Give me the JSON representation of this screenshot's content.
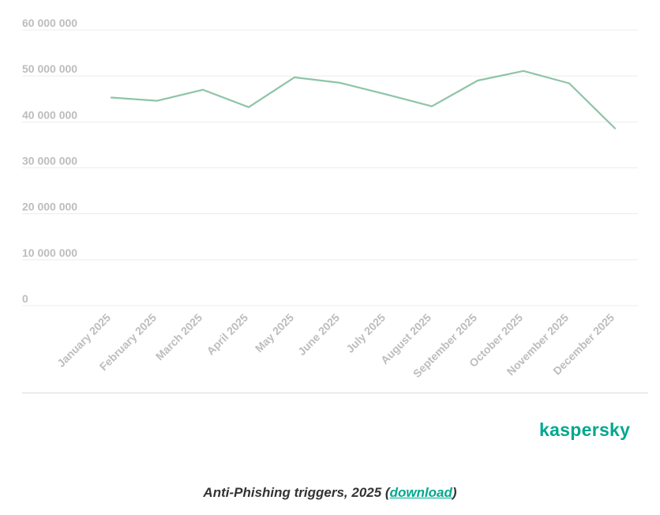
{
  "chart_data": {
    "type": "line",
    "categories": [
      "January 2025",
      "February 2025",
      "March 2025",
      "April 2025",
      "May 2025",
      "June 2025",
      "July 2025",
      "August 2025",
      "September 2025",
      "October 2025",
      "November 2025",
      "December 2025"
    ],
    "series": [
      {
        "values": [
          45300000,
          44600000,
          47000000,
          43200000,
          49700000,
          48500000,
          46000000,
          43400000,
          49000000,
          51100000,
          48400000,
          38600000
        ],
        "color": "#8ec4a7"
      }
    ],
    "ylim": [
      0,
      60000000
    ],
    "yticks": [
      0,
      10000000,
      20000000,
      30000000,
      40000000,
      50000000,
      60000000
    ],
    "ytick_labels": [
      "0",
      "10 000 000",
      "20 000 000",
      "30 000 000",
      "40 000 000",
      "50 000 000",
      "60 000 000"
    ],
    "grid": true,
    "legend": "none"
  },
  "logo": {
    "text": "kaspersky",
    "color": "#00a88e"
  },
  "caption": {
    "prefix": "Anti-Phishing triggers, 2025 (",
    "link_text": "download",
    "suffix": ")"
  }
}
